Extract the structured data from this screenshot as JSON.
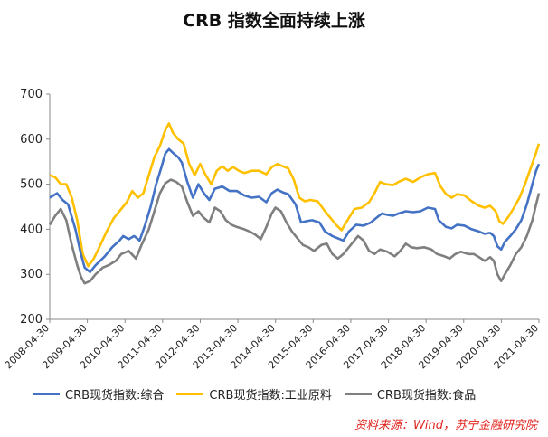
{
  "chart_data": {
    "type": "line",
    "title": "CRB 指数全面持续上涨",
    "ylim": [
      200,
      700
    ],
    "yticks": [
      "700",
      "600",
      "500",
      "400",
      "300",
      "200"
    ],
    "xticks": [
      "2008-04-30",
      "2009-04-30",
      "2010-04-30",
      "2011-04-30",
      "2012-04-30",
      "2013-04-30",
      "2014-04-30",
      "2015-04-30",
      "2016-04-30",
      "2017-04-30",
      "2018-04-30",
      "2019-04-30",
      "2020-04-30",
      "2021-04-30"
    ],
    "x_range": [
      2008.0,
      2021.33
    ],
    "series": [
      {
        "name": "CRB现货指数:综合",
        "color": "#4472c4",
        "points": [
          [
            2008.0,
            470
          ],
          [
            2008.2,
            480
          ],
          [
            2008.35,
            465
          ],
          [
            2008.5,
            455
          ],
          [
            2008.7,
            400
          ],
          [
            2008.85,
            345
          ],
          [
            2008.95,
            315
          ],
          [
            2009.1,
            305
          ],
          [
            2009.25,
            320
          ],
          [
            2009.5,
            340
          ],
          [
            2009.7,
            360
          ],
          [
            2009.9,
            375
          ],
          [
            2010.0,
            385
          ],
          [
            2010.15,
            378
          ],
          [
            2010.3,
            385
          ],
          [
            2010.45,
            375
          ],
          [
            2010.6,
            410
          ],
          [
            2010.75,
            450
          ],
          [
            2010.9,
            500
          ],
          [
            2011.05,
            540
          ],
          [
            2011.15,
            568
          ],
          [
            2011.25,
            578
          ],
          [
            2011.35,
            570
          ],
          [
            2011.5,
            560
          ],
          [
            2011.6,
            548
          ],
          [
            2011.75,
            505
          ],
          [
            2011.9,
            470
          ],
          [
            2012.05,
            500
          ],
          [
            2012.2,
            480
          ],
          [
            2012.35,
            465
          ],
          [
            2012.5,
            490
          ],
          [
            2012.7,
            495
          ],
          [
            2012.9,
            485
          ],
          [
            2013.1,
            485
          ],
          [
            2013.3,
            475
          ],
          [
            2013.5,
            470
          ],
          [
            2013.7,
            472
          ],
          [
            2013.9,
            460
          ],
          [
            2014.05,
            480
          ],
          [
            2014.2,
            488
          ],
          [
            2014.35,
            482
          ],
          [
            2014.5,
            478
          ],
          [
            2014.7,
            455
          ],
          [
            2014.85,
            415
          ],
          [
            2015.0,
            418
          ],
          [
            2015.15,
            420
          ],
          [
            2015.35,
            415
          ],
          [
            2015.5,
            395
          ],
          [
            2015.7,
            385
          ],
          [
            2015.85,
            380
          ],
          [
            2016.0,
            375
          ],
          [
            2016.15,
            395
          ],
          [
            2016.35,
            410
          ],
          [
            2016.55,
            408
          ],
          [
            2016.75,
            415
          ],
          [
            2016.9,
            425
          ],
          [
            2017.05,
            435
          ],
          [
            2017.2,
            432
          ],
          [
            2017.35,
            430
          ],
          [
            2017.5,
            435
          ],
          [
            2017.7,
            440
          ],
          [
            2017.9,
            438
          ],
          [
            2018.1,
            440
          ],
          [
            2018.3,
            448
          ],
          [
            2018.5,
            445
          ],
          [
            2018.6,
            420
          ],
          [
            2018.8,
            405
          ],
          [
            2018.95,
            402
          ],
          [
            2019.1,
            410
          ],
          [
            2019.3,
            408
          ],
          [
            2019.5,
            400
          ],
          [
            2019.7,
            395
          ],
          [
            2019.85,
            390
          ],
          [
            2020.0,
            392
          ],
          [
            2020.1,
            385
          ],
          [
            2020.2,
            362
          ],
          [
            2020.3,
            355
          ],
          [
            2020.4,
            372
          ],
          [
            2020.55,
            385
          ],
          [
            2020.7,
            400
          ],
          [
            2020.85,
            420
          ],
          [
            2021.0,
            455
          ],
          [
            2021.15,
            500
          ],
          [
            2021.25,
            530
          ],
          [
            2021.33,
            545
          ]
        ]
      },
      {
        "name": "CRB现货指数:工业原料",
        "color": "#ffc000",
        "points": [
          [
            2008.0,
            520
          ],
          [
            2008.15,
            515
          ],
          [
            2008.3,
            500
          ],
          [
            2008.45,
            500
          ],
          [
            2008.6,
            470
          ],
          [
            2008.75,
            420
          ],
          [
            2008.9,
            345
          ],
          [
            2009.05,
            318
          ],
          [
            2009.2,
            335
          ],
          [
            2009.35,
            360
          ],
          [
            2009.55,
            395
          ],
          [
            2009.75,
            425
          ],
          [
            2009.95,
            445
          ],
          [
            2010.1,
            460
          ],
          [
            2010.25,
            485
          ],
          [
            2010.4,
            470
          ],
          [
            2010.55,
            480
          ],
          [
            2010.7,
            520
          ],
          [
            2010.85,
            560
          ],
          [
            2011.0,
            585
          ],
          [
            2011.15,
            620
          ],
          [
            2011.25,
            635
          ],
          [
            2011.35,
            615
          ],
          [
            2011.5,
            600
          ],
          [
            2011.65,
            590
          ],
          [
            2011.8,
            545
          ],
          [
            2011.95,
            520
          ],
          [
            2012.1,
            545
          ],
          [
            2012.25,
            520
          ],
          [
            2012.4,
            500
          ],
          [
            2012.55,
            530
          ],
          [
            2012.7,
            540
          ],
          [
            2012.85,
            530
          ],
          [
            2013.0,
            538
          ],
          [
            2013.15,
            530
          ],
          [
            2013.3,
            525
          ],
          [
            2013.5,
            530
          ],
          [
            2013.7,
            530
          ],
          [
            2013.9,
            522
          ],
          [
            2014.05,
            538
          ],
          [
            2014.2,
            545
          ],
          [
            2014.35,
            540
          ],
          [
            2014.5,
            535
          ],
          [
            2014.65,
            510
          ],
          [
            2014.8,
            470
          ],
          [
            2014.95,
            462
          ],
          [
            2015.1,
            465
          ],
          [
            2015.3,
            462
          ],
          [
            2015.5,
            440
          ],
          [
            2015.65,
            425
          ],
          [
            2015.8,
            410
          ],
          [
            2015.95,
            398
          ],
          [
            2016.1,
            418
          ],
          [
            2016.3,
            445
          ],
          [
            2016.5,
            448
          ],
          [
            2016.7,
            460
          ],
          [
            2016.85,
            480
          ],
          [
            2017.0,
            505
          ],
          [
            2017.15,
            500
          ],
          [
            2017.35,
            498
          ],
          [
            2017.5,
            505
          ],
          [
            2017.7,
            512
          ],
          [
            2017.9,
            505
          ],
          [
            2018.1,
            515
          ],
          [
            2018.3,
            522
          ],
          [
            2018.5,
            525
          ],
          [
            2018.65,
            495
          ],
          [
            2018.8,
            478
          ],
          [
            2018.95,
            470
          ],
          [
            2019.1,
            478
          ],
          [
            2019.3,
            475
          ],
          [
            2019.5,
            462
          ],
          [
            2019.7,
            452
          ],
          [
            2019.85,
            448
          ],
          [
            2020.0,
            452
          ],
          [
            2020.15,
            440
          ],
          [
            2020.25,
            418
          ],
          [
            2020.35,
            412
          ],
          [
            2020.5,
            428
          ],
          [
            2020.65,
            448
          ],
          [
            2020.8,
            470
          ],
          [
            2020.95,
            500
          ],
          [
            2021.1,
            535
          ],
          [
            2021.25,
            570
          ],
          [
            2021.33,
            590
          ]
        ]
      },
      {
        "name": "CRB现货指数:食品",
        "color": "#7f7f7f",
        "points": [
          [
            2008.0,
            410
          ],
          [
            2008.15,
            430
          ],
          [
            2008.3,
            445
          ],
          [
            2008.45,
            420
          ],
          [
            2008.6,
            365
          ],
          [
            2008.75,
            320
          ],
          [
            2008.85,
            295
          ],
          [
            2008.95,
            280
          ],
          [
            2009.1,
            285
          ],
          [
            2009.25,
            300
          ],
          [
            2009.45,
            315
          ],
          [
            2009.6,
            320
          ],
          [
            2009.8,
            330
          ],
          [
            2009.95,
            345
          ],
          [
            2010.15,
            352
          ],
          [
            2010.35,
            335
          ],
          [
            2010.5,
            365
          ],
          [
            2010.7,
            400
          ],
          [
            2010.85,
            440
          ],
          [
            2011.0,
            480
          ],
          [
            2011.15,
            502
          ],
          [
            2011.3,
            510
          ],
          [
            2011.45,
            505
          ],
          [
            2011.6,
            495
          ],
          [
            2011.75,
            460
          ],
          [
            2011.9,
            430
          ],
          [
            2012.05,
            440
          ],
          [
            2012.2,
            425
          ],
          [
            2012.35,
            415
          ],
          [
            2012.5,
            448
          ],
          [
            2012.65,
            440
          ],
          [
            2012.8,
            420
          ],
          [
            2012.95,
            410
          ],
          [
            2013.1,
            405
          ],
          [
            2013.3,
            400
          ],
          [
            2013.45,
            395
          ],
          [
            2013.6,
            388
          ],
          [
            2013.75,
            378
          ],
          [
            2013.9,
            405
          ],
          [
            2014.05,
            435
          ],
          [
            2014.15,
            448
          ],
          [
            2014.3,
            440
          ],
          [
            2014.45,
            415
          ],
          [
            2014.6,
            395
          ],
          [
            2014.75,
            380
          ],
          [
            2014.9,
            365
          ],
          [
            2015.05,
            360
          ],
          [
            2015.2,
            352
          ],
          [
            2015.4,
            365
          ],
          [
            2015.55,
            368
          ],
          [
            2015.7,
            345
          ],
          [
            2015.85,
            335
          ],
          [
            2016.0,
            345
          ],
          [
            2016.2,
            365
          ],
          [
            2016.4,
            385
          ],
          [
            2016.55,
            375
          ],
          [
            2016.7,
            352
          ],
          [
            2016.85,
            345
          ],
          [
            2017.0,
            355
          ],
          [
            2017.2,
            350
          ],
          [
            2017.4,
            340
          ],
          [
            2017.55,
            352
          ],
          [
            2017.7,
            368
          ],
          [
            2017.85,
            360
          ],
          [
            2018.0,
            358
          ],
          [
            2018.2,
            360
          ],
          [
            2018.4,
            355
          ],
          [
            2018.55,
            345
          ],
          [
            2018.75,
            340
          ],
          [
            2018.9,
            335
          ],
          [
            2019.05,
            345
          ],
          [
            2019.2,
            350
          ],
          [
            2019.4,
            345
          ],
          [
            2019.55,
            345
          ],
          [
            2019.7,
            338
          ],
          [
            2019.85,
            330
          ],
          [
            2020.0,
            338
          ],
          [
            2020.1,
            330
          ],
          [
            2020.2,
            300
          ],
          [
            2020.3,
            285
          ],
          [
            2020.4,
            300
          ],
          [
            2020.55,
            320
          ],
          [
            2020.7,
            345
          ],
          [
            2020.85,
            360
          ],
          [
            2021.0,
            385
          ],
          [
            2021.15,
            420
          ],
          [
            2021.25,
            455
          ],
          [
            2021.33,
            480
          ]
        ]
      }
    ],
    "source": "资料来源：Wind，苏宁金融研究院",
    "legend_position": "bottom",
    "grid": false
  }
}
